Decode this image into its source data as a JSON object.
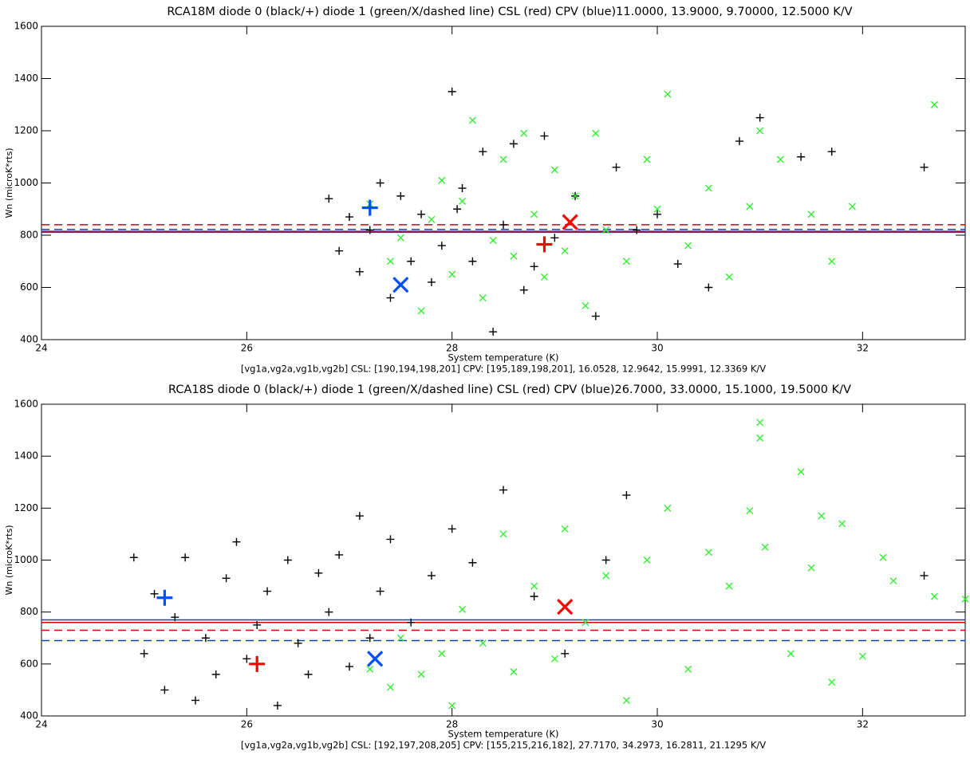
{
  "chart_data": [
    {
      "type": "scatter",
      "title": "RCA18M diode 0 (black/+) diode 1 (green/X/dashed line) CSL (red) CPV (blue)11.0000, 13.9000, 9.70000, 12.5000 K/V",
      "xlabel": "System temperature (K)",
      "subtitle": "[vg1a,vg2a,vg1b,vg2b] CSL: [190,194,198,201] CPV: [195,189,198,201], 16.0528, 12.9642, 15.9991, 12.3369 K/V",
      "ylabel": "Wn (microK*rts)",
      "xlim": [
        24,
        33
      ],
      "ylim": [
        400,
        1600
      ],
      "xticks": [
        24,
        26,
        28,
        30,
        32
      ],
      "yticks": [
        400,
        600,
        800,
        1000,
        1200,
        1400,
        1600
      ],
      "lines": [
        {
          "value": 840,
          "color": "#e00000",
          "dash": true
        },
        {
          "value": 822,
          "color": "#0040e0",
          "dash": true
        },
        {
          "value": 815,
          "color": "#e00000",
          "dash": false
        },
        {
          "value": 811,
          "color": "#0040e0",
          "dash": false
        }
      ],
      "series": [
        {
          "color": "#000000",
          "marker": "plus",
          "x": [
            26.8,
            26.9,
            27.0,
            27.1,
            27.2,
            27.3,
            27.4,
            27.5,
            27.6,
            27.7,
            27.8,
            27.9,
            28.0,
            28.05,
            28.1,
            28.2,
            28.3,
            28.4,
            28.5,
            28.6,
            28.7,
            28.8,
            28.9,
            29.0,
            29.2,
            29.4,
            29.6,
            29.8,
            30.0,
            30.2,
            30.5,
            30.8,
            31.0,
            31.4,
            31.7,
            32.6
          ],
          "y": [
            940,
            740,
            870,
            660,
            820,
            1000,
            560,
            950,
            700,
            880,
            620,
            760,
            1350,
            900,
            980,
            700,
            1120,
            430,
            840,
            1150,
            590,
            680,
            1180,
            790,
            950,
            490,
            1060,
            820,
            880,
            690,
            600,
            1160,
            1250,
            1100,
            1120,
            1060
          ]
        },
        {
          "color": "#33ee33",
          "marker": "cross",
          "x": [
            27.2,
            27.4,
            27.5,
            27.7,
            27.8,
            27.9,
            28.0,
            28.1,
            28.2,
            28.3,
            28.4,
            28.5,
            28.6,
            28.7,
            28.8,
            28.9,
            29.0,
            29.1,
            29.2,
            29.3,
            29.4,
            29.5,
            29.7,
            29.9,
            30.0,
            30.1,
            30.3,
            30.5,
            30.7,
            30.9,
            31.0,
            31.2,
            31.5,
            31.7,
            31.9,
            32.7
          ],
          "y": [
            920,
            700,
            790,
            510,
            860,
            1010,
            650,
            930,
            1240,
            560,
            780,
            1090,
            720,
            1190,
            880,
            640,
            1050,
            740,
            950,
            530,
            1190,
            820,
            700,
            1090,
            900,
            1340,
            760,
            980,
            640,
            910,
            1200,
            1090,
            880,
            700,
            910,
            1300
          ]
        },
        {
          "color": "#0050ff",
          "marker": "big-plus",
          "x": [
            27.2
          ],
          "y": [
            905
          ]
        },
        {
          "color": "#0050ff",
          "marker": "big-cross",
          "x": [
            27.5
          ],
          "y": [
            610
          ]
        },
        {
          "color": "#ff0000",
          "marker": "big-plus",
          "x": [
            28.9
          ],
          "y": [
            765
          ]
        },
        {
          "color": "#ff0000",
          "marker": "big-cross",
          "x": [
            29.15
          ],
          "y": [
            850
          ]
        }
      ]
    },
    {
      "type": "scatter",
      "title": "RCA18S diode 0 (black/+) diode 1 (green/X/dashed line) CSL (red) CPV (blue)26.7000, 33.0000, 15.1000, 19.5000 K/V",
      "xlabel": "System temperature (K)",
      "subtitle": "[vg1a,vg2a,vg1b,vg2b] CSL: [192,197,208,205] CPV: [155,215,216,182], 27.7170, 34.2973, 16.2811, 21.1295 K/V",
      "ylabel": "Wn (microK*rts)",
      "xlim": [
        24,
        33
      ],
      "ylim": [
        400,
        1600
      ],
      "xticks": [
        24,
        26,
        28,
        30,
        32
      ],
      "yticks": [
        400,
        600,
        800,
        1000,
        1200,
        1400,
        1600
      ],
      "lines": [
        {
          "value": 770,
          "color": "#0040e0",
          "dash": false
        },
        {
          "value": 760,
          "color": "#e00000",
          "dash": false
        },
        {
          "value": 730,
          "color": "#e00000",
          "dash": true
        },
        {
          "value": 690,
          "color": "#0040e0",
          "dash": true
        }
      ],
      "series": [
        {
          "color": "#000000",
          "marker": "plus",
          "x": [
            24.9,
            25.0,
            25.1,
            25.2,
            25.3,
            25.4,
            25.5,
            25.6,
            25.7,
            25.8,
            25.9,
            26.0,
            26.1,
            26.2,
            26.3,
            26.4,
            26.5,
            26.6,
            26.7,
            26.8,
            26.9,
            27.0,
            27.1,
            27.2,
            27.3,
            27.4,
            27.6,
            27.8,
            28.0,
            28.2,
            28.5,
            28.8,
            29.1,
            29.5,
            29.7,
            32.6
          ],
          "y": [
            1010,
            640,
            870,
            500,
            780,
            1010,
            460,
            700,
            560,
            930,
            1070,
            620,
            750,
            880,
            440,
            1000,
            680,
            560,
            950,
            800,
            1020,
            590,
            1170,
            700,
            880,
            1080,
            760,
            940,
            1120,
            990,
            1270,
            860,
            640,
            1000,
            1250,
            940
          ]
        },
        {
          "color": "#33ee33",
          "marker": "cross",
          "x": [
            27.2,
            27.4,
            27.5,
            27.7,
            27.9,
            28.0,
            28.1,
            28.3,
            28.5,
            28.6,
            28.8,
            29.0,
            29.1,
            29.3,
            29.5,
            29.7,
            29.9,
            30.1,
            30.3,
            30.5,
            30.7,
            30.9,
            31.0,
            31.0,
            31.05,
            31.3,
            31.4,
            31.5,
            31.6,
            31.7,
            31.8,
            32.0,
            32.2,
            32.3,
            32.7,
            33.0
          ],
          "y": [
            580,
            510,
            700,
            560,
            640,
            440,
            810,
            680,
            1100,
            570,
            900,
            620,
            1120,
            760,
            940,
            460,
            1000,
            1200,
            580,
            1030,
            900,
            1190,
            1470,
            1530,
            1050,
            640,
            1340,
            970,
            1170,
            530,
            1140,
            630,
            1010,
            920,
            860,
            850
          ]
        },
        {
          "color": "#0050ff",
          "marker": "big-plus",
          "x": [
            25.2
          ],
          "y": [
            855
          ]
        },
        {
          "color": "#0050ff",
          "marker": "big-cross",
          "x": [
            27.25
          ],
          "y": [
            620
          ]
        },
        {
          "color": "#ff0000",
          "marker": "big-plus",
          "x": [
            26.1
          ],
          "y": [
            600
          ]
        },
        {
          "color": "#ff0000",
          "marker": "big-cross",
          "x": [
            29.1
          ],
          "y": [
            820
          ]
        }
      ]
    }
  ]
}
